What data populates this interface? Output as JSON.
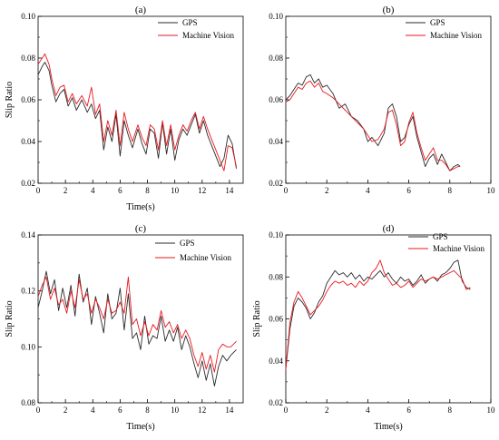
{
  "colors": {
    "gps": "#2b2b2b",
    "vision": "#e8191f",
    "axis": "#000000"
  },
  "chart_data": [
    {
      "type": "line",
      "panel_label": "(a)",
      "xlabel": "Time(s)",
      "ylabel": "Slip Ratio",
      "xlim": [
        0,
        15
      ],
      "ylim": [
        0.02,
        0.1
      ],
      "xticks": [
        0,
        2,
        4,
        6,
        8,
        10,
        12,
        14
      ],
      "yticks": [
        0.02,
        0.04,
        0.06,
        0.08,
        0.1
      ],
      "ytick_labels": [
        "0.02",
        "0.04",
        "0.06",
        "0.08",
        "0.10"
      ],
      "legend_position": "top-right",
      "series": [
        {
          "name": "GPS",
          "color_key": "gps",
          "x": [
            0,
            0.3,
            0.5,
            0.8,
            1.0,
            1.3,
            1.6,
            1.9,
            2.2,
            2.5,
            2.8,
            3.2,
            3.6,
            3.9,
            4.2,
            4.5,
            4.8,
            5.1,
            5.4,
            5.7,
            6.0,
            6.3,
            6.6,
            6.9,
            7.3,
            7.6,
            7.9,
            8.2,
            8.5,
            8.8,
            9.1,
            9.4,
            9.7,
            10.0,
            10.3,
            10.6,
            10.9,
            11.2,
            11.5,
            11.8,
            12.1,
            12.4,
            12.7,
            13.0,
            13.3,
            13.6,
            13.9,
            14.2,
            14.5
          ],
          "y": [
            0.072,
            0.076,
            0.078,
            0.074,
            0.067,
            0.059,
            0.063,
            0.065,
            0.057,
            0.061,
            0.055,
            0.06,
            0.054,
            0.058,
            0.051,
            0.055,
            0.036,
            0.047,
            0.04,
            0.053,
            0.033,
            0.05,
            0.043,
            0.037,
            0.046,
            0.039,
            0.034,
            0.046,
            0.044,
            0.032,
            0.049,
            0.034,
            0.046,
            0.031,
            0.041,
            0.046,
            0.043,
            0.048,
            0.053,
            0.044,
            0.05,
            0.043,
            0.038,
            0.033,
            0.028,
            0.032,
            0.043,
            0.039,
            0.027
          ]
        },
        {
          "name": "Machine Vision",
          "color_key": "vision",
          "x": [
            0,
            0.3,
            0.5,
            0.8,
            1.0,
            1.3,
            1.6,
            1.9,
            2.2,
            2.5,
            2.8,
            3.2,
            3.6,
            3.9,
            4.2,
            4.5,
            4.8,
            5.1,
            5.4,
            5.7,
            6.0,
            6.3,
            6.6,
            6.9,
            7.3,
            7.6,
            7.9,
            8.2,
            8.5,
            8.8,
            9.1,
            9.4,
            9.7,
            10.0,
            10.3,
            10.6,
            10.9,
            11.2,
            11.5,
            11.8,
            12.1,
            12.4,
            12.7,
            13.0,
            13.3,
            13.6,
            13.9,
            14.2,
            14.5
          ],
          "y": [
            0.077,
            0.08,
            0.082,
            0.077,
            0.07,
            0.062,
            0.066,
            0.067,
            0.059,
            0.063,
            0.058,
            0.062,
            0.057,
            0.066,
            0.053,
            0.058,
            0.04,
            0.05,
            0.043,
            0.055,
            0.038,
            0.054,
            0.046,
            0.04,
            0.048,
            0.042,
            0.038,
            0.048,
            0.046,
            0.036,
            0.05,
            0.038,
            0.048,
            0.036,
            0.043,
            0.048,
            0.045,
            0.05,
            0.054,
            0.046,
            0.052,
            0.046,
            0.041,
            0.036,
            0.031,
            0.026,
            0.038,
            0.037,
            0.028
          ]
        }
      ]
    },
    {
      "type": "line",
      "panel_label": "(b)",
      "xlabel": "",
      "ylabel": "",
      "xlim": [
        0,
        10
      ],
      "ylim": [
        0.02,
        0.1
      ],
      "xticks": [
        0,
        2,
        4,
        6,
        8,
        10
      ],
      "yticks": [
        0.02,
        0.04,
        0.06,
        0.08,
        0.1
      ],
      "ytick_labels": [
        "0.02",
        "0.04",
        "0.06",
        "0.08",
        "0.10"
      ],
      "legend_position": "top-right",
      "series": [
        {
          "name": "GPS",
          "color_key": "gps",
          "x": [
            0,
            0.2,
            0.4,
            0.6,
            0.8,
            1.0,
            1.2,
            1.4,
            1.6,
            1.8,
            2.0,
            2.3,
            2.6,
            2.9,
            3.2,
            3.5,
            3.8,
            4.0,
            4.2,
            4.5,
            4.8,
            5.0,
            5.2,
            5.4,
            5.6,
            5.8,
            6.0,
            6.2,
            6.4,
            6.6,
            6.8,
            7.0,
            7.2,
            7.4,
            7.6,
            7.8,
            8.0,
            8.2,
            8.4,
            8.5
          ],
          "y": [
            0.06,
            0.062,
            0.065,
            0.068,
            0.067,
            0.071,
            0.072,
            0.068,
            0.07,
            0.066,
            0.067,
            0.063,
            0.056,
            0.058,
            0.052,
            0.05,
            0.046,
            0.04,
            0.042,
            0.038,
            0.044,
            0.056,
            0.058,
            0.052,
            0.04,
            0.042,
            0.048,
            0.052,
            0.042,
            0.035,
            0.028,
            0.032,
            0.034,
            0.029,
            0.034,
            0.03,
            0.026,
            0.028,
            0.029,
            0.028
          ]
        },
        {
          "name": "Machine Vision",
          "color_key": "vision",
          "x": [
            0,
            0.2,
            0.4,
            0.6,
            0.8,
            1.0,
            1.2,
            1.4,
            1.6,
            1.8,
            2.0,
            2.3,
            2.6,
            2.9,
            3.2,
            3.5,
            3.8,
            4.0,
            4.2,
            4.5,
            4.8,
            5.0,
            5.2,
            5.4,
            5.6,
            5.8,
            6.0,
            6.2,
            6.4,
            6.6,
            6.8,
            7.0,
            7.2,
            7.4,
            7.6,
            7.8,
            8.0,
            8.2,
            8.4,
            8.5
          ],
          "y": [
            0.059,
            0.06,
            0.063,
            0.066,
            0.065,
            0.068,
            0.069,
            0.066,
            0.068,
            0.064,
            0.063,
            0.061,
            0.058,
            0.055,
            0.052,
            0.049,
            0.046,
            0.043,
            0.04,
            0.041,
            0.046,
            0.054,
            0.055,
            0.048,
            0.038,
            0.04,
            0.049,
            0.054,
            0.044,
            0.037,
            0.031,
            0.034,
            0.037,
            0.031,
            0.031,
            0.029,
            0.026,
            0.027,
            0.028,
            0.028
          ]
        }
      ]
    },
    {
      "type": "line",
      "panel_label": "(c)",
      "xlabel": "Time(s)",
      "ylabel": "Slip Ratio",
      "xlim": [
        0,
        15
      ],
      "ylim": [
        0.08,
        0.14
      ],
      "xticks": [
        0,
        2,
        4,
        6,
        8,
        10,
        12,
        14
      ],
      "yticks": [
        0.08,
        0.1,
        0.12,
        0.14
      ],
      "ytick_labels": [
        "0.08",
        "0.10",
        "0.12",
        "0.14"
      ],
      "legend_position": "top-right",
      "series": [
        {
          "name": "GPS",
          "color_key": "gps",
          "x": [
            0,
            0.3,
            0.6,
            0.9,
            1.2,
            1.5,
            1.8,
            2.1,
            2.4,
            2.7,
            3.0,
            3.3,
            3.6,
            3.9,
            4.2,
            4.5,
            4.8,
            5.1,
            5.4,
            5.7,
            6.0,
            6.3,
            6.6,
            6.9,
            7.2,
            7.5,
            7.8,
            8.1,
            8.4,
            8.7,
            9.0,
            9.3,
            9.6,
            9.9,
            10.2,
            10.5,
            10.8,
            11.1,
            11.4,
            11.7,
            12.0,
            12.3,
            12.6,
            12.9,
            13.2,
            13.5,
            13.8,
            14.1,
            14.5
          ],
          "y": [
            0.114,
            0.12,
            0.127,
            0.119,
            0.124,
            0.113,
            0.121,
            0.114,
            0.122,
            0.111,
            0.126,
            0.116,
            0.121,
            0.108,
            0.118,
            0.112,
            0.105,
            0.119,
            0.11,
            0.112,
            0.121,
            0.106,
            0.119,
            0.103,
            0.105,
            0.099,
            0.111,
            0.101,
            0.104,
            0.103,
            0.111,
            0.102,
            0.106,
            0.102,
            0.107,
            0.099,
            0.104,
            0.1,
            0.094,
            0.089,
            0.095,
            0.088,
            0.094,
            0.086,
            0.093,
            0.097,
            0.095,
            0.097,
            0.099
          ]
        },
        {
          "name": "Machine Vision",
          "color_key": "vision",
          "x": [
            0,
            0.3,
            0.6,
            0.9,
            1.2,
            1.5,
            1.8,
            2.1,
            2.4,
            2.7,
            3.0,
            3.3,
            3.6,
            3.9,
            4.2,
            4.5,
            4.8,
            5.1,
            5.4,
            5.7,
            6.0,
            6.3,
            6.6,
            6.9,
            7.2,
            7.5,
            7.8,
            8.1,
            8.4,
            8.7,
            9.0,
            9.3,
            9.6,
            9.9,
            10.2,
            10.5,
            10.8,
            11.1,
            11.4,
            11.7,
            12.0,
            12.3,
            12.6,
            12.9,
            13.2,
            13.5,
            13.8,
            14.1,
            14.5
          ],
          "y": [
            0.118,
            0.122,
            0.125,
            0.117,
            0.121,
            0.115,
            0.117,
            0.112,
            0.12,
            0.114,
            0.124,
            0.117,
            0.119,
            0.112,
            0.117,
            0.114,
            0.11,
            0.117,
            0.112,
            0.113,
            0.116,
            0.112,
            0.125,
            0.108,
            0.11,
            0.104,
            0.109,
            0.104,
            0.108,
            0.106,
            0.113,
            0.107,
            0.109,
            0.105,
            0.108,
            0.103,
            0.106,
            0.103,
            0.097,
            0.093,
            0.098,
            0.092,
            0.097,
            0.091,
            0.099,
            0.101,
            0.1,
            0.1,
            0.102
          ]
        }
      ]
    },
    {
      "type": "line",
      "panel_label": "(d)",
      "xlabel": "Time(s)",
      "ylabel": "Slip Ratio",
      "xlim": [
        0,
        10
      ],
      "ylim": [
        0.02,
        0.1
      ],
      "xticks": [
        0,
        2,
        4,
        6,
        8,
        10
      ],
      "yticks": [
        0.02,
        0.04,
        0.06,
        0.08,
        0.1
      ],
      "ytick_labels": [
        "0.02",
        "0.04",
        "0.06",
        "0.08",
        "0.10"
      ],
      "legend_position": "top-right",
      "series": [
        {
          "name": "GPS",
          "color_key": "gps",
          "x": [
            0,
            0.2,
            0.4,
            0.6,
            0.8,
            1.0,
            1.2,
            1.4,
            1.6,
            1.8,
            2.0,
            2.2,
            2.4,
            2.6,
            2.8,
            3.0,
            3.2,
            3.4,
            3.6,
            3.8,
            4.0,
            4.2,
            4.4,
            4.6,
            4.8,
            5.0,
            5.2,
            5.4,
            5.6,
            5.8,
            6.0,
            6.2,
            6.4,
            6.6,
            6.8,
            7.0,
            7.2,
            7.4,
            7.6,
            7.8,
            8.0,
            8.2,
            8.4,
            8.6,
            8.8,
            9.0
          ],
          "y": [
            0.036,
            0.055,
            0.066,
            0.07,
            0.068,
            0.065,
            0.06,
            0.063,
            0.068,
            0.071,
            0.077,
            0.08,
            0.083,
            0.081,
            0.082,
            0.08,
            0.082,
            0.079,
            0.081,
            0.078,
            0.08,
            0.079,
            0.081,
            0.083,
            0.08,
            0.082,
            0.079,
            0.077,
            0.08,
            0.078,
            0.079,
            0.076,
            0.078,
            0.081,
            0.077,
            0.079,
            0.08,
            0.078,
            0.081,
            0.082,
            0.084,
            0.087,
            0.088,
            0.078,
            0.075,
            0.074
          ]
        },
        {
          "name": "Machine Vision",
          "color_key": "vision",
          "x": [
            0,
            0.2,
            0.4,
            0.6,
            0.8,
            1.0,
            1.2,
            1.4,
            1.6,
            1.8,
            2.0,
            2.2,
            2.4,
            2.6,
            2.8,
            3.0,
            3.2,
            3.4,
            3.6,
            3.8,
            4.0,
            4.2,
            4.4,
            4.6,
            4.8,
            5.0,
            5.2,
            5.4,
            5.6,
            5.8,
            6.0,
            6.2,
            6.4,
            6.6,
            6.8,
            7.0,
            7.2,
            7.4,
            7.6,
            7.8,
            8.0,
            8.2,
            8.4,
            8.6,
            8.8,
            9.0
          ],
          "y": [
            0.036,
            0.058,
            0.068,
            0.073,
            0.07,
            0.066,
            0.062,
            0.064,
            0.066,
            0.069,
            0.073,
            0.076,
            0.078,
            0.077,
            0.078,
            0.076,
            0.077,
            0.075,
            0.078,
            0.076,
            0.078,
            0.082,
            0.084,
            0.088,
            0.082,
            0.079,
            0.076,
            0.077,
            0.075,
            0.076,
            0.078,
            0.075,
            0.077,
            0.079,
            0.078,
            0.079,
            0.08,
            0.079,
            0.08,
            0.081,
            0.082,
            0.083,
            0.081,
            0.079,
            0.074,
            0.075
          ]
        }
      ]
    }
  ]
}
